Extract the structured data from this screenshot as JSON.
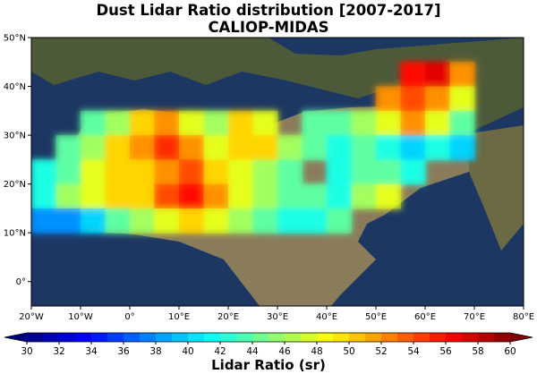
{
  "title": "Dust Lidar Ratio distribution [2007-2017]",
  "subtitle": "CALIOP-MIDAS",
  "chart_data": {
    "type": "heatmap",
    "title": "Dust Lidar Ratio distribution [2007-2017]",
    "subtitle": "CALIOP-MIDAS",
    "lon_range": [
      -20,
      80
    ],
    "lat_range": [
      -5,
      50
    ],
    "x_ticks": [
      "20°W",
      "10°W",
      "0°",
      "10°E",
      "20°E",
      "30°E",
      "40°E",
      "50°E",
      "60°E",
      "70°E",
      "80°E"
    ],
    "x_tick_values": [
      -20,
      -10,
      0,
      10,
      20,
      30,
      40,
      50,
      60,
      70,
      80
    ],
    "y_ticks": [
      "50°N",
      "40°N",
      "30°N",
      "20°N",
      "10°N",
      "0°"
    ],
    "y_tick_values": [
      50,
      40,
      30,
      20,
      10,
      0
    ],
    "cell_size_deg": 5,
    "grid_lon_start": -20,
    "grid_lat_top": 45,
    "grid": [
      [
        null,
        null,
        null,
        null,
        null,
        null,
        null,
        null,
        null,
        null,
        null,
        null,
        null,
        null,
        null,
        56,
        57,
        52
      ],
      [
        null,
        null,
        null,
        null,
        null,
        null,
        null,
        null,
        null,
        null,
        null,
        null,
        null,
        null,
        52,
        54,
        52,
        48
      ],
      [
        null,
        null,
        44,
        46,
        50,
        52,
        48,
        46,
        50,
        48,
        null,
        44,
        44,
        46,
        48,
        52,
        48,
        44
      ],
      [
        null,
        44,
        46,
        50,
        52,
        55,
        52,
        48,
        50,
        50,
        46,
        44,
        42,
        44,
        42,
        40,
        42,
        40
      ],
      [
        42,
        44,
        48,
        50,
        50,
        52,
        54,
        50,
        48,
        46,
        44,
        null,
        42,
        44,
        44,
        42,
        null,
        null
      ],
      [
        42,
        46,
        48,
        50,
        50,
        54,
        56,
        52,
        48,
        46,
        44,
        44,
        42,
        46,
        48,
        null,
        null,
        null
      ],
      [
        38,
        38,
        40,
        44,
        46,
        48,
        50,
        48,
        46,
        44,
        42,
        42,
        44,
        null,
        null,
        null,
        null,
        null
      ]
    ],
    "colorbar": {
      "label": "Lidar Ratio (sr)",
      "min": 30,
      "max": 60,
      "extend": "both",
      "ticks": [
        "30",
        "32",
        "34",
        "36",
        "38",
        "40",
        "42",
        "44",
        "46",
        "48",
        "50",
        "52",
        "54",
        "56",
        "58",
        "60"
      ],
      "colormap": "jet"
    }
  }
}
